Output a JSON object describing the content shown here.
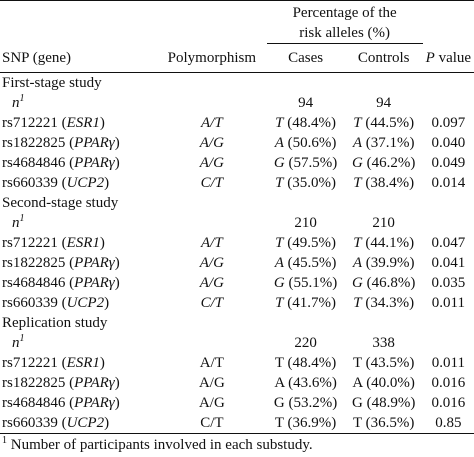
{
  "header": {
    "group_line1": "Percentage of the",
    "group_line2": "risk alleles (%)",
    "col_snp": "SNP (gene)",
    "col_poly": "Polymorphism",
    "col_cases": "Cases",
    "col_controls": "Controls",
    "col_p_italic": "P",
    "col_p_rest": " value"
  },
  "n_label": "n",
  "n_sup": "1",
  "sections": [
    {
      "title": "First-stage study",
      "n_cases": "94",
      "n_controls": "94",
      "rows": [
        {
          "snp": "rs712221",
          "gene": "ESR1",
          "poly": "A/T",
          "cases_allele": "T",
          "cases_pct": " (48.4%)",
          "ctrl_allele": "T",
          "ctrl_pct": " (44.5%)",
          "p": "0.097"
        },
        {
          "snp": "rs1822825",
          "gene": "PPARγ",
          "poly": "A/G",
          "cases_allele": "A",
          "cases_pct": " (50.6%)",
          "ctrl_allele": "A",
          "ctrl_pct": " (37.1%)",
          "p": "0.040"
        },
        {
          "snp": "rs4684846",
          "gene": "PPARγ",
          "poly": "A/G",
          "cases_allele": "G",
          "cases_pct": " (57.5%)",
          "ctrl_allele": "G",
          "ctrl_pct": " (46.2%)",
          "p": "0.049"
        },
        {
          "snp": "rs660339",
          "gene": "UCP2",
          "poly": "C/T",
          "cases_allele": "T",
          "cases_pct": " (35.0%)",
          "ctrl_allele": "T",
          "ctrl_pct": " (38.4%)",
          "p": "0.014"
        }
      ]
    },
    {
      "title": "Second-stage study",
      "n_cases": "210",
      "n_controls": "210",
      "rows": [
        {
          "snp": "rs712221",
          "gene": "ESR1",
          "poly": "A/T",
          "cases_allele": "T",
          "cases_pct": " (49.5%)",
          "ctrl_allele": "T",
          "ctrl_pct": " (44.1%)",
          "p": "0.047"
        },
        {
          "snp": "rs1822825",
          "gene": "PPARγ",
          "poly": "A/G",
          "cases_allele": "A",
          "cases_pct": " (45.5%)",
          "ctrl_allele": "A",
          "ctrl_pct": " (39.9%)",
          "p": "0.041"
        },
        {
          "snp": "rs4684846",
          "gene": "PPARγ",
          "poly": "A/G",
          "cases_allele": "G",
          "cases_pct": " (55.1%)",
          "ctrl_allele": "G",
          "ctrl_pct": " (46.8%)",
          "p": "0.035"
        },
        {
          "snp": "rs660339",
          "gene": "UCP2",
          "poly": "C/T",
          "cases_allele": "T",
          "cases_pct": " (41.7%)",
          "ctrl_allele": "T",
          "ctrl_pct": " (34.3%)",
          "p": "0.011"
        }
      ]
    },
    {
      "title": "Replication study",
      "n_cases": "220",
      "n_controls": "338",
      "rows": [
        {
          "snp": "rs712221",
          "gene": "ESR1",
          "poly": "A/T",
          "cases_allele": "T",
          "cases_pct": " (48.4%)",
          "ctrl_allele": "T",
          "ctrl_pct": " (43.5%)",
          "p": "0.011"
        },
        {
          "snp": "rs1822825",
          "gene": "PPARγ",
          "poly": "A/G",
          "cases_allele": "A",
          "cases_pct": " (43.6%)",
          "ctrl_allele": "A",
          "ctrl_pct": " (40.0%)",
          "p": "0.016"
        },
        {
          "snp": "rs4684846",
          "gene": "PPARγ",
          "poly": "A/G",
          "cases_allele": "G",
          "cases_pct": " (53.2%)",
          "ctrl_allele": "G",
          "ctrl_pct": " (48.9%)",
          "p": "0.016"
        },
        {
          "snp": "rs660339",
          "gene": "UCP2",
          "poly": "C/T",
          "cases_allele": "T",
          "cases_pct": " (36.9%)",
          "ctrl_allele": "T",
          "ctrl_pct": " (36.5%)",
          "p": "0.85"
        }
      ]
    }
  ],
  "footnote": {
    "sup": "1",
    "text": " Number of participants involved in each substudy."
  }
}
